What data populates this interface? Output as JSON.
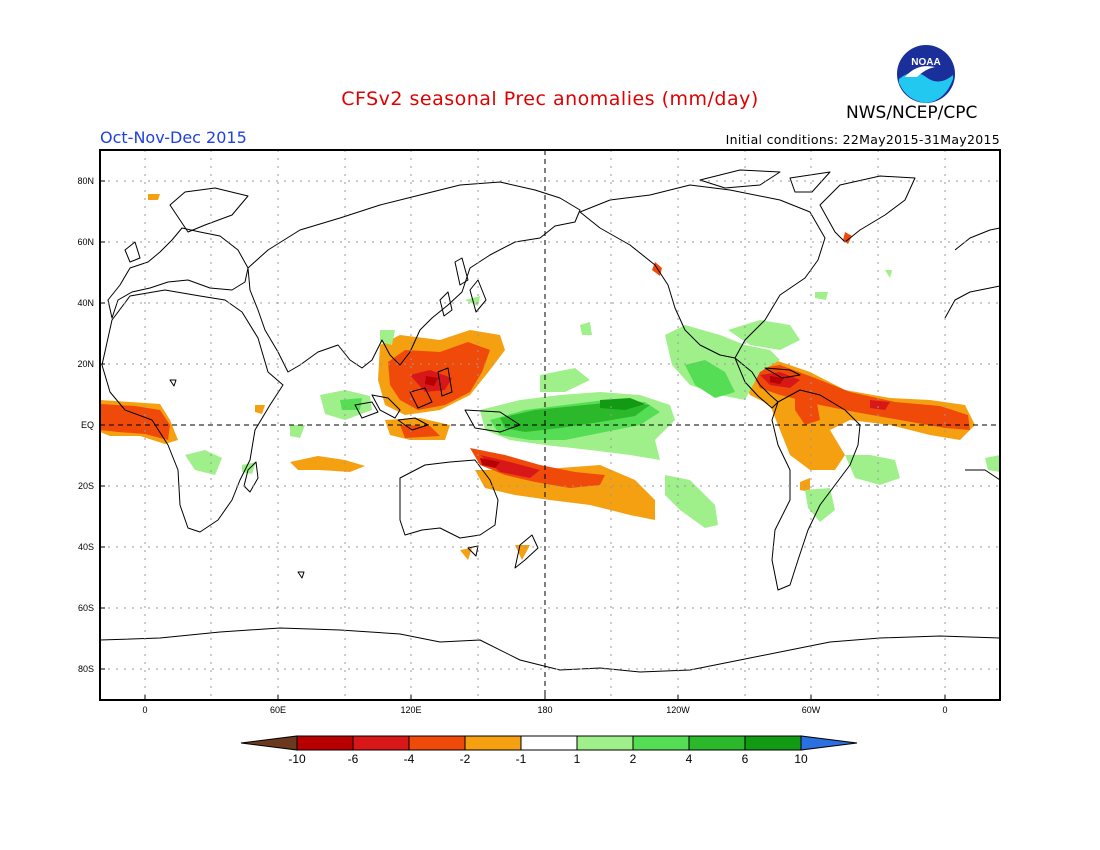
{
  "header": {
    "title": "CFSv2 seasonal Prec anomalies (mm/day)",
    "season": "Oct-Nov-Dec 2015",
    "initial_conditions": "Initial conditions: 22May2015-31May2015",
    "agency": "NWS/NCEP/CPC",
    "logo_icon": "noaa-logo-icon",
    "logo_text": "NOAA"
  },
  "map": {
    "projection": "equirectangular",
    "lon_range": [
      -20,
      380
    ],
    "lat_range": [
      -90,
      90
    ],
    "lat_ticks": [
      "80N",
      "60N",
      "40N",
      "20N",
      "EQ",
      "20S",
      "40S",
      "60S",
      "80S"
    ],
    "lon_ticks": [
      "0",
      "60E",
      "120E",
      "180",
      "120W",
      "60W",
      "0"
    ],
    "grid": "dotted"
  },
  "colorbar": {
    "labels": [
      "-10",
      "-6",
      "-4",
      "-2",
      "-1",
      "1",
      "2",
      "4",
      "6",
      "10"
    ],
    "colors": [
      "#6b3a1e",
      "#b80000",
      "#d81818",
      "#f04a0a",
      "#f5a010",
      "#ffffff",
      "#9ff08a",
      "#55dd55",
      "#2bb82b",
      "#139a13",
      "#2a70e0"
    ]
  }
}
